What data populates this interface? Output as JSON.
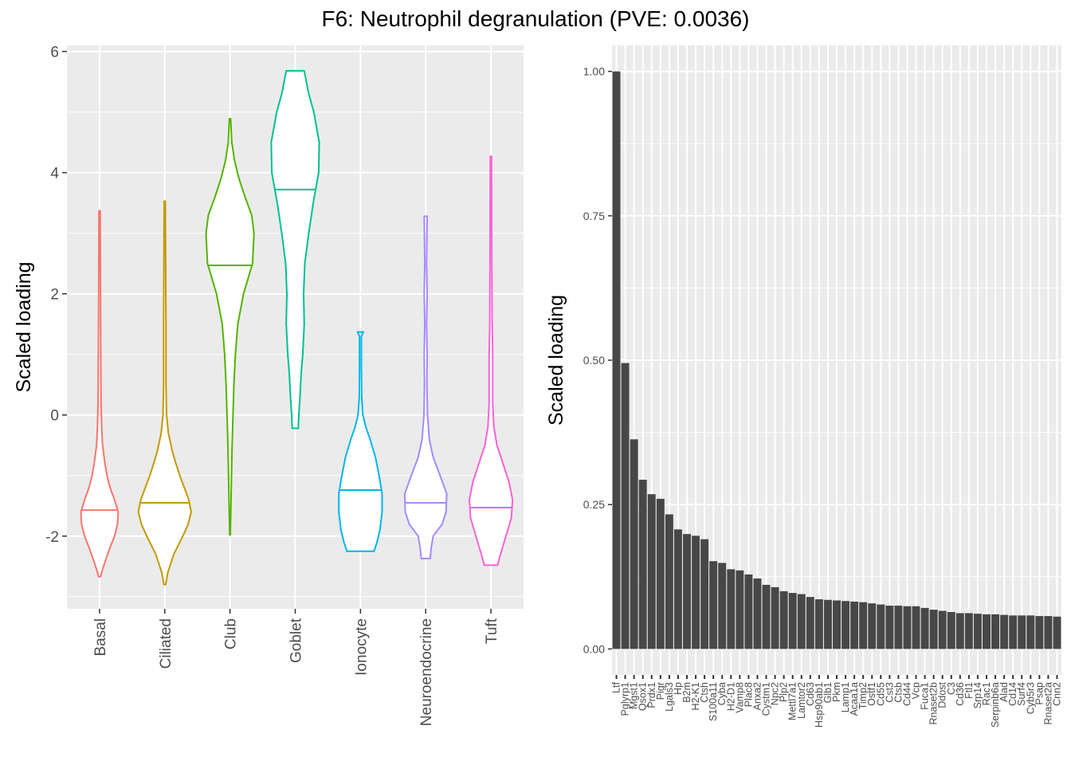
{
  "title": "F6: Neutrophil degranulation (PVE: 0.0036)",
  "chart_data": [
    {
      "type": "violin",
      "ylabel": "Scaled loading",
      "ylim": [
        -3.2,
        6.1
      ],
      "yticks": [
        -2,
        0,
        2,
        4,
        6
      ],
      "ytick_labels": [
        "-2",
        "0",
        "2",
        "4",
        "6"
      ],
      "grid": true,
      "categories": [
        "Basal",
        "Ciliated",
        "Club",
        "Goblet",
        "Ionocyte",
        "Neuroendocrine",
        "Tuft"
      ],
      "colors": [
        "#F8766D",
        "#C49A00",
        "#53B400",
        "#00C094",
        "#00B6EB",
        "#A58AFF",
        "#FB61D7"
      ],
      "medians": [
        -1.57,
        -1.45,
        2.47,
        3.72,
        -1.24,
        -1.45,
        -1.53
      ],
      "ranges": [
        [
          -2.67,
          3.37
        ],
        [
          -2.8,
          3.53
        ],
        [
          -1.98,
          4.89
        ],
        [
          -0.22,
          5.68
        ],
        [
          -2.25,
          1.37
        ],
        [
          -2.37,
          3.28
        ],
        [
          -2.48,
          4.27
        ]
      ],
      "density_profiles": [
        [
          [
            -2.67,
            0.03
          ],
          [
            -2.55,
            0.1
          ],
          [
            -2.4,
            0.2
          ],
          [
            -2.2,
            0.34
          ],
          [
            -2.0,
            0.5
          ],
          [
            -1.8,
            0.6
          ],
          [
            -1.6,
            0.62
          ],
          [
            -1.4,
            0.5
          ],
          [
            -1.2,
            0.35
          ],
          [
            -1.0,
            0.25
          ],
          [
            -0.8,
            0.18
          ],
          [
            -0.5,
            0.1
          ],
          [
            -0.2,
            0.07
          ],
          [
            0.2,
            0.05
          ],
          [
            1.0,
            0.04
          ],
          [
            2.0,
            0.03
          ],
          [
            3.37,
            0.02
          ]
        ],
        [
          [
            -2.8,
            0.03
          ],
          [
            -2.6,
            0.1
          ],
          [
            -2.3,
            0.3
          ],
          [
            -2.0,
            0.6
          ],
          [
            -1.8,
            0.78
          ],
          [
            -1.6,
            0.88
          ],
          [
            -1.4,
            0.8
          ],
          [
            -1.2,
            0.65
          ],
          [
            -1.0,
            0.5
          ],
          [
            -0.8,
            0.37
          ],
          [
            -0.6,
            0.25
          ],
          [
            -0.3,
            0.12
          ],
          [
            0.0,
            0.06
          ],
          [
            0.5,
            0.04
          ],
          [
            1.5,
            0.04
          ],
          [
            2.5,
            0.03
          ],
          [
            3.53,
            0.02
          ]
        ],
        [
          [
            -1.98,
            0.01
          ],
          [
            -1.5,
            0.03
          ],
          [
            -1.0,
            0.05
          ],
          [
            -0.5,
            0.07
          ],
          [
            0.0,
            0.1
          ],
          [
            0.5,
            0.13
          ],
          [
            1.0,
            0.18
          ],
          [
            1.5,
            0.26
          ],
          [
            2.0,
            0.45
          ],
          [
            2.5,
            0.75
          ],
          [
            3.0,
            0.8
          ],
          [
            3.3,
            0.72
          ],
          [
            3.6,
            0.5
          ],
          [
            3.9,
            0.3
          ],
          [
            4.2,
            0.15
          ],
          [
            4.5,
            0.06
          ],
          [
            4.89,
            0.02
          ]
        ],
        [
          [
            -0.22,
            0.1
          ],
          [
            0.0,
            0.12
          ],
          [
            0.3,
            0.16
          ],
          [
            0.7,
            0.2
          ],
          [
            1.0,
            0.25
          ],
          [
            1.5,
            0.3
          ],
          [
            2.0,
            0.28
          ],
          [
            2.5,
            0.32
          ],
          [
            3.0,
            0.45
          ],
          [
            3.5,
            0.6
          ],
          [
            4.0,
            0.78
          ],
          [
            4.5,
            0.8
          ],
          [
            5.0,
            0.62
          ],
          [
            5.3,
            0.45
          ],
          [
            5.68,
            0.3
          ]
        ],
        [
          [
            -2.25,
            0.45
          ],
          [
            -2.1,
            0.55
          ],
          [
            -1.9,
            0.65
          ],
          [
            -1.6,
            0.72
          ],
          [
            -1.3,
            0.72
          ],
          [
            -1.0,
            0.62
          ],
          [
            -0.7,
            0.5
          ],
          [
            -0.4,
            0.32
          ],
          [
            -0.2,
            0.18
          ],
          [
            0.0,
            0.08
          ],
          [
            0.3,
            0.04
          ],
          [
            0.8,
            0.03
          ],
          [
            1.3,
            0.03
          ],
          [
            1.37,
            0.1
          ]
        ],
        [
          [
            -2.37,
            0.15
          ],
          [
            -2.2,
            0.18
          ],
          [
            -2.0,
            0.25
          ],
          [
            -1.8,
            0.55
          ],
          [
            -1.6,
            0.68
          ],
          [
            -1.3,
            0.7
          ],
          [
            -1.0,
            0.48
          ],
          [
            -0.7,
            0.25
          ],
          [
            -0.4,
            0.12
          ],
          [
            0.0,
            0.06
          ],
          [
            0.5,
            0.04
          ],
          [
            1.0,
            0.05
          ],
          [
            1.5,
            0.03
          ],
          [
            2.0,
            0.05
          ],
          [
            2.5,
            0.03
          ],
          [
            3.28,
            0.05
          ]
        ],
        [
          [
            -2.48,
            0.22
          ],
          [
            -2.3,
            0.32
          ],
          [
            -2.0,
            0.5
          ],
          [
            -1.7,
            0.68
          ],
          [
            -1.4,
            0.72
          ],
          [
            -1.1,
            0.6
          ],
          [
            -0.8,
            0.4
          ],
          [
            -0.5,
            0.2
          ],
          [
            -0.2,
            0.1
          ],
          [
            0.2,
            0.06
          ],
          [
            1.0,
            0.06
          ],
          [
            1.5,
            0.04
          ],
          [
            2.5,
            0.03
          ],
          [
            4.27,
            0.02
          ]
        ]
      ]
    },
    {
      "type": "bar",
      "ylabel": "Scaled loading",
      "ylim": [
        -0.045,
        1.045
      ],
      "yticks": [
        0,
        0.25,
        0.5,
        0.75,
        1.0
      ],
      "ytick_labels": [
        "0.00",
        "0.25",
        "0.50",
        "0.75",
        "1.00"
      ],
      "grid": true,
      "bar_color": "#474747",
      "categories": [
        "Ltf",
        "Pglyrp1",
        "Mgst1",
        "Qsox1",
        "Prdx1",
        "Pigr",
        "Lgals3",
        "Hp",
        "B2m",
        "H2-K1",
        "Ctsh",
        "S100a11",
        "Cyba",
        "H2-D1",
        "Vamp8",
        "Plac8",
        "Anxa2",
        "Cystm1",
        "Npc2",
        "Plp2",
        "Mettl7a1",
        "Lamtor2",
        "Cd63",
        "Hsp90ab1",
        "Glb1",
        "Pkm",
        "Lamp1",
        "Acaa1a",
        "Timp2",
        "Ostf1",
        "Cd55",
        "Cst3",
        "Ctsb",
        "Cd44",
        "Vcp",
        "Fuca1",
        "Rnaset2b",
        "Ddost",
        "C3",
        "Cd36",
        "Ftl1",
        "Srp14",
        "Rac1",
        "Serpinb6a",
        "Alad",
        "Cd14",
        "Surf4",
        "Cyb5r3",
        "Psap",
        "Rnaset2a",
        "Cnn2"
      ],
      "values": [
        1.0,
        0.495,
        0.363,
        0.293,
        0.268,
        0.26,
        0.233,
        0.207,
        0.199,
        0.196,
        0.19,
        0.152,
        0.149,
        0.138,
        0.136,
        0.129,
        0.122,
        0.111,
        0.107,
        0.1,
        0.097,
        0.095,
        0.09,
        0.086,
        0.085,
        0.084,
        0.083,
        0.082,
        0.081,
        0.079,
        0.077,
        0.075,
        0.075,
        0.074,
        0.074,
        0.071,
        0.068,
        0.066,
        0.064,
        0.062,
        0.062,
        0.061,
        0.06,
        0.06,
        0.059,
        0.058,
        0.058,
        0.058,
        0.057,
        0.057,
        0.056
      ]
    }
  ]
}
